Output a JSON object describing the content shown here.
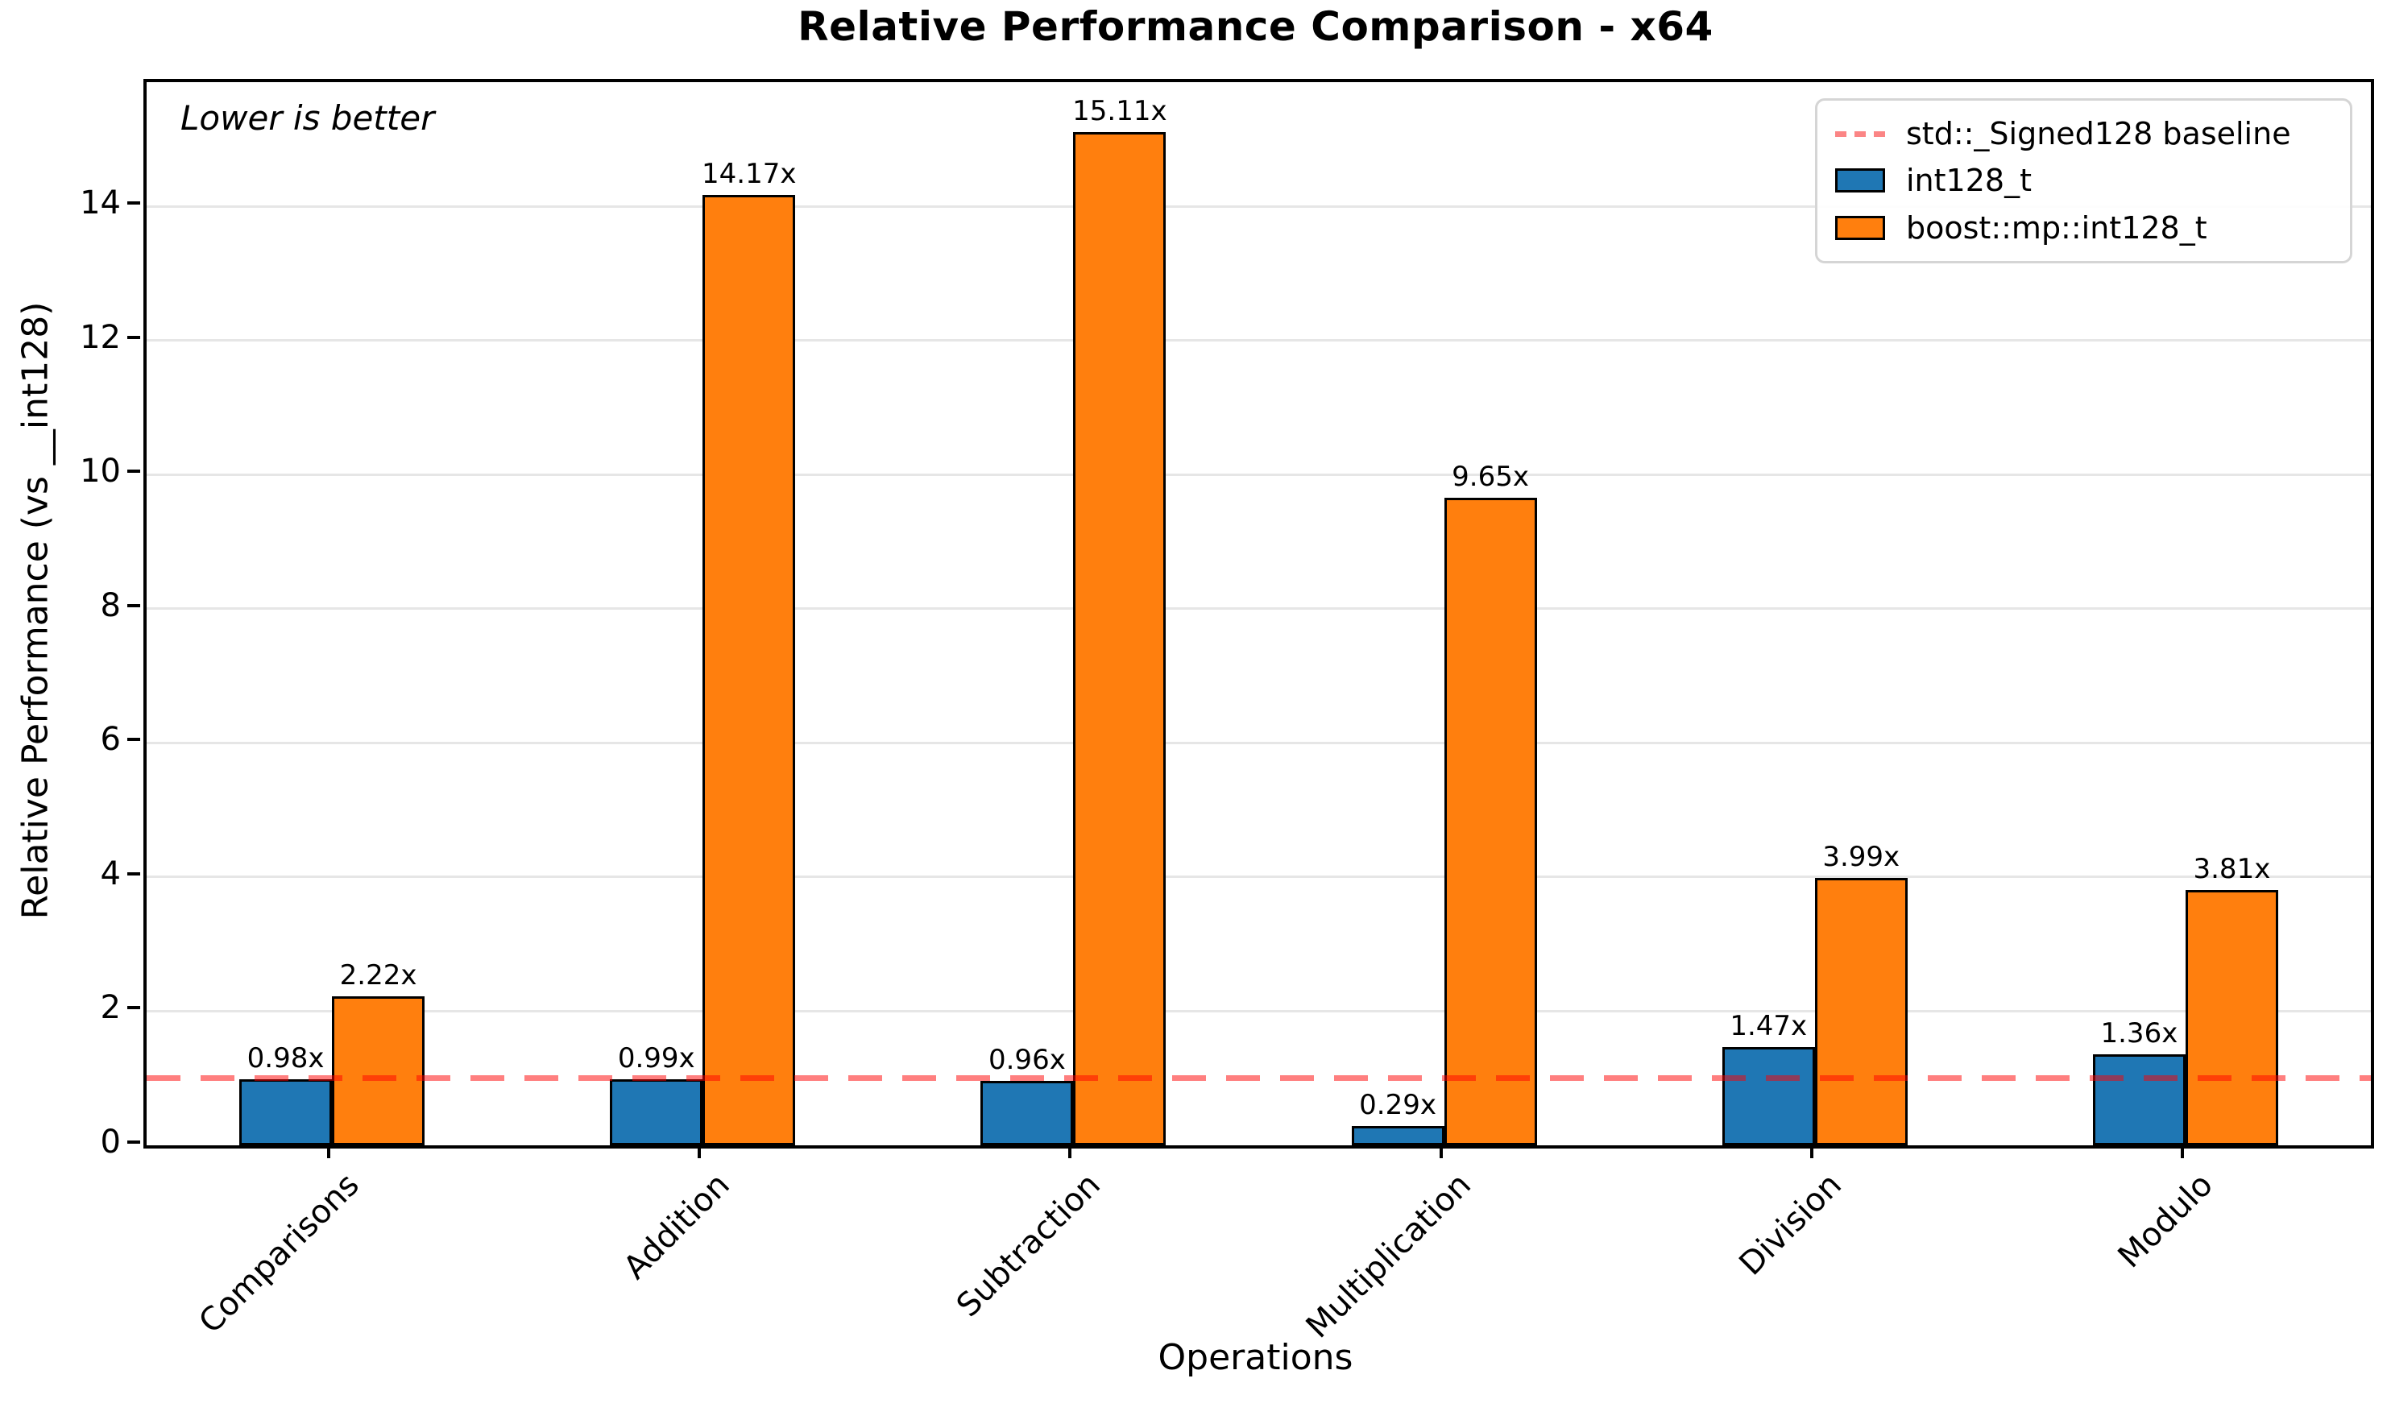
{
  "chart_data": {
    "type": "bar",
    "title": "Relative Performance Comparison - x64",
    "xlabel": "Operations",
    "ylabel": "Relative Performance (vs __int128)",
    "annotation": "Lower is better",
    "categories": [
      "Comparisons",
      "Addition",
      "Subtraction",
      "Multiplication",
      "Division",
      "Modulo"
    ],
    "series": [
      {
        "name": "int128_t",
        "color": "#1f77b4",
        "values": [
          0.98,
          0.99,
          0.96,
          0.29,
          1.47,
          1.36
        ],
        "labels": [
          "0.98x",
          "0.99x",
          "0.96x",
          "0.29x",
          "1.47x",
          "1.36x"
        ]
      },
      {
        "name": "boost::mp::int128_t",
        "color": "#ff7f0e",
        "values": [
          2.22,
          14.17,
          15.11,
          9.65,
          3.99,
          3.81
        ],
        "labels": [
          "2.22x",
          "14.17x",
          "15.11x",
          "9.65x",
          "3.99x",
          "3.81x"
        ]
      }
    ],
    "baseline": {
      "value": 1.0,
      "label": "std::_Signed128 baseline",
      "line_color": "rgba(255,0,0,0.5)",
      "legend_color": "#fb8585",
      "style": "dashed"
    },
    "yticks": [
      0,
      2,
      4,
      6,
      8,
      10,
      12,
      14
    ],
    "ylim": [
      0,
      15.85
    ],
    "grid": "horizontal",
    "legend_position": "upper right"
  }
}
